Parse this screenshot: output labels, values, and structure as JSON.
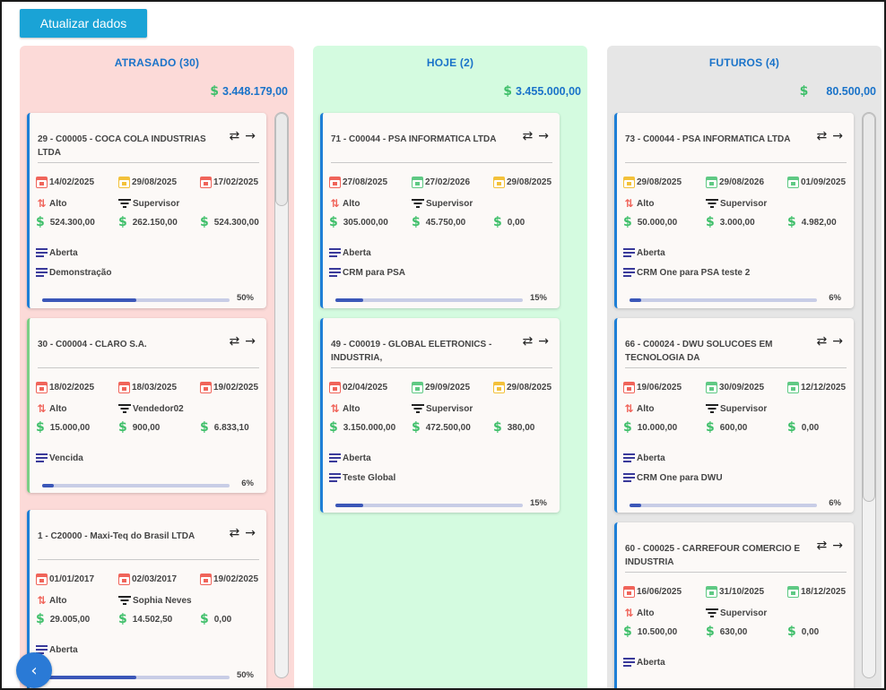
{
  "toolbar": {
    "refresh_label": "Atualizar dados"
  },
  "columns": [
    {
      "title": "ATRASADO (30)",
      "total": "3.448.179,00",
      "cards": [
        {
          "title": "29 - C00005 - COCA COLA INDUSTRIAS LTDA",
          "dates": [
            "14/02/2025",
            "29/08/2025",
            "17/02/2025"
          ],
          "date_colors": [
            "red",
            "yellow",
            "red"
          ],
          "priority": "Alto",
          "role": "Supervisor",
          "values": [
            "524.300,00",
            "262.150,00",
            "524.300,00"
          ],
          "tags": [
            "Aberta",
            "Demonstração"
          ],
          "progress_label": "50%",
          "progress": 0.5
        },
        {
          "title": "30 - C00004 - CLARO S.A.",
          "dates": [
            "18/02/2025",
            "18/03/2025",
            "19/02/2025"
          ],
          "date_colors": [
            "red",
            "red",
            "red"
          ],
          "priority": "Alto",
          "role": "Vendedor02",
          "values": [
            "15.000,00",
            "900,00",
            "6.833,10"
          ],
          "tags": [
            "Vencida"
          ],
          "progress_label": "6%",
          "progress": 0.06
        },
        {
          "title": "1 - C20000 - Maxi-Teq do Brasil LTDA",
          "dates": [
            "01/01/2017",
            "02/03/2017",
            "19/02/2025"
          ],
          "date_colors": [
            "red",
            "red",
            "red"
          ],
          "priority": "Alto",
          "role": "Sophia Neves",
          "values": [
            "29.005,00",
            "14.502,50",
            "0,00"
          ],
          "tags": [
            "Aberta"
          ],
          "progress_label": "50%",
          "progress": 0.5
        }
      ]
    },
    {
      "title": "HOJE (2)",
      "total": "3.455.000,00",
      "cards": [
        {
          "title": "71 - C00044 - PSA INFORMATICA LTDA",
          "dates": [
            "27/08/2025",
            "27/02/2026",
            "29/08/2025"
          ],
          "date_colors": [
            "red",
            "green",
            "yellow"
          ],
          "priority": "Alto",
          "role": "Supervisor",
          "values": [
            "305.000,00",
            "45.750,00",
            "0,00"
          ],
          "tags": [
            "Aberta",
            "CRM para PSA"
          ],
          "progress_label": "15%",
          "progress": 0.15
        },
        {
          "title": "49 - C00019 - GLOBAL ELETRONICS - INDUSTRIA,",
          "dates": [
            "02/04/2025",
            "29/09/2025",
            "29/08/2025"
          ],
          "date_colors": [
            "red",
            "green",
            "yellow"
          ],
          "priority": "Alto",
          "role": "Supervisor",
          "values": [
            "3.150.000,00",
            "472.500,00",
            "380,00"
          ],
          "tags": [
            "Aberta",
            "Teste Global"
          ],
          "progress_label": "15%",
          "progress": 0.15
        }
      ]
    },
    {
      "title": "FUTUROS (4)",
      "total": "80.500,00",
      "cards": [
        {
          "title": "73 - C00044 - PSA INFORMATICA LTDA",
          "dates": [
            "29/08/2025",
            "29/08/2026",
            "01/09/2025"
          ],
          "date_colors": [
            "yellow",
            "green",
            "green"
          ],
          "priority": "Alto",
          "role": "Supervisor",
          "values": [
            "50.000,00",
            "3.000,00",
            "4.982,00"
          ],
          "tags": [
            "Aberta",
            "CRM One para PSA teste 2"
          ],
          "progress_label": "6%",
          "progress": 0.06
        },
        {
          "title": "66 - C00024 - DWU SOLUCOES EM TECNOLOGIA DA",
          "dates": [
            "19/06/2025",
            "30/09/2025",
            "12/12/2025"
          ],
          "date_colors": [
            "red",
            "green",
            "green"
          ],
          "priority": "Alto",
          "role": "Supervisor",
          "values": [
            "10.000,00",
            "600,00",
            "0,00"
          ],
          "tags": [
            "Aberta",
            "CRM One para DWU"
          ],
          "progress_label": "6%",
          "progress": 0.06
        },
        {
          "title": "60 - C00025 - CARREFOUR COMERCIO E INDUSTRIA",
          "dates": [
            "16/06/2025",
            "31/10/2025",
            "18/12/2025"
          ],
          "date_colors": [
            "red",
            "green",
            "green"
          ],
          "priority": "Alto",
          "role": "Supervisor",
          "values": [
            "10.500,00",
            "630,00",
            "0,00"
          ],
          "tags": [
            "Aberta"
          ]
        }
      ]
    }
  ],
  "icons": {
    "swap": "swap-arrows-icon",
    "go": "arrow-right-icon",
    "back": "chevron-left-icon"
  },
  "colors": {
    "accent": "#1aa3d6",
    "title_blue": "#1a73c9",
    "late_bg": "#fcdad8",
    "today_bg": "#d4fbe0",
    "future_bg": "#e6e6e6"
  }
}
